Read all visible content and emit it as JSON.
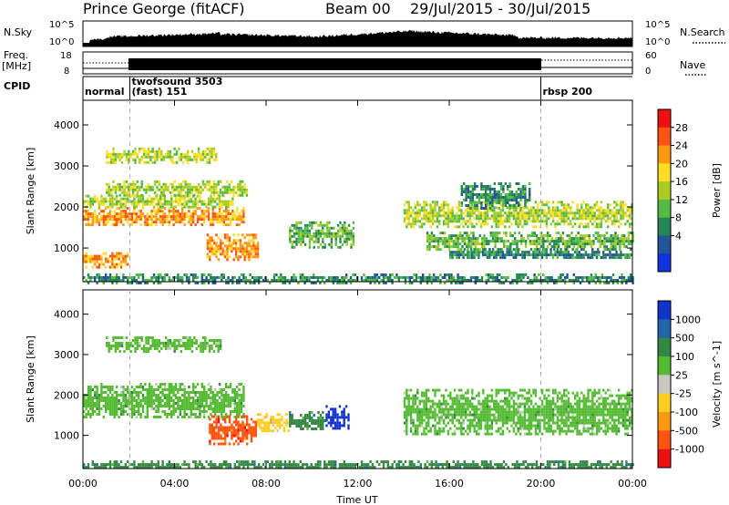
{
  "header": {
    "station": "Prince George (fitACF)",
    "beam": "Beam 00",
    "date_range": "29/Jul/2015 - 30/Jul/2015"
  },
  "strip_labels": {
    "nsky": "N.Sky",
    "nsky_hi": "10^5",
    "nsky_lo": "10^0",
    "nsearch": "N.Search",
    "nsearch_hi": "10^5",
    "nsearch_lo": "10^0",
    "freq": "Freq.",
    "freq_unit": "[MHz]",
    "freq_hi": "18",
    "freq_lo": "8",
    "nave": "Nave",
    "nave_hi": "60",
    "nave_lo": "0",
    "cpid": "CPID"
  },
  "cpid_segments": [
    {
      "label": "normal",
      "start_hour": 0.0,
      "end_hour": 2.05
    },
    {
      "label": "twofsound 3503",
      "label2": "(fast) 151",
      "start_hour": 2.05,
      "end_hour": 20.0
    },
    {
      "label": "rbsp 200",
      "start_hour": 20.0,
      "end_hour": 24.0
    }
  ],
  "power_colorbar": {
    "title": "Power [dB]",
    "ticks": [
      "28",
      "24",
      "20",
      "16",
      "12",
      "8",
      "4"
    ],
    "colors": [
      "#ee1111",
      "#ff5511",
      "#ff9911",
      "#ffdd22",
      "#aacc22",
      "#55bb44",
      "#228855",
      "#225599",
      "#1133dd"
    ]
  },
  "velocity_colorbar": {
    "title": "Velocity [m s^-1]",
    "ticks": [
      "1000",
      "500",
      "100",
      "25",
      "-25",
      "-100",
      "-500",
      "-1000"
    ],
    "colors": [
      "#1133cc",
      "#2266aa",
      "#338844",
      "#55bb33",
      "#c8c8c0",
      "#ffcc22",
      "#ff9911",
      "#ff5511",
      "#ee1111"
    ]
  },
  "chart_data": {
    "type": "heatmap",
    "xlabel": "Time UT",
    "x_ticks": [
      "00:00",
      "04:00",
      "08:00",
      "12:00",
      "16:00",
      "20:00",
      "00:00"
    ],
    "x_range_hours": [
      0,
      24
    ],
    "ylabel": "Slant Range [km]",
    "y_ticks": [
      1000,
      2000,
      3000,
      4000
    ],
    "y_range_km": [
      180,
      4600
    ],
    "panels": [
      {
        "name": "power",
        "bands": [
          {
            "t0": 0.0,
            "t1": 7.0,
            "r0": 1550,
            "r1": 2000,
            "level": 24
          },
          {
            "t0": 0.0,
            "t1": 6.5,
            "r0": 2000,
            "r1": 2300,
            "level": 16
          },
          {
            "t0": 1.0,
            "t1": 7.2,
            "r0": 2300,
            "r1": 2650,
            "level": 16
          },
          {
            "t0": 1.0,
            "t1": 5.8,
            "r0": 3100,
            "r1": 3450,
            "level": 16
          },
          {
            "t0": 5.4,
            "t1": 7.6,
            "r0": 700,
            "r1": 1350,
            "level": 24
          },
          {
            "t0": 0.0,
            "t1": 2.0,
            "r0": 550,
            "r1": 900,
            "level": 24
          },
          {
            "t0": 9.0,
            "t1": 11.8,
            "r0": 1050,
            "r1": 1650,
            "level": 12
          },
          {
            "t0": 14.0,
            "t1": 24.0,
            "r0": 1550,
            "r1": 2150,
            "level": 16
          },
          {
            "t0": 15.0,
            "t1": 24.0,
            "r0": 1000,
            "r1": 1400,
            "level": 12
          },
          {
            "t0": 16.0,
            "t1": 24.0,
            "r0": 750,
            "r1": 1000,
            "level": 8
          },
          {
            "t0": 16.5,
            "t1": 19.5,
            "r0": 2000,
            "r1": 2600,
            "level": 8
          },
          {
            "t0": 0.0,
            "t1": 24.0,
            "r0": 180,
            "r1": 380,
            "level": 8
          }
        ]
      },
      {
        "name": "velocity",
        "bands": [
          {
            "t0": 0.0,
            "t1": 7.0,
            "r0": 1450,
            "r1": 2300,
            "level": 25
          },
          {
            "t0": 1.0,
            "t1": 6.0,
            "r0": 3100,
            "r1": 3450,
            "level": 25
          },
          {
            "t0": 5.5,
            "t1": 7.6,
            "r0": 800,
            "r1": 1500,
            "level": -500
          },
          {
            "t0": 7.6,
            "t1": 9.0,
            "r0": 1100,
            "r1": 1550,
            "level": -100
          },
          {
            "t0": 9.0,
            "t1": 10.6,
            "r0": 1150,
            "r1": 1600,
            "level": 100
          },
          {
            "t0": 10.6,
            "t1": 11.6,
            "r0": 1200,
            "r1": 1750,
            "level": 1000
          },
          {
            "t0": 14.0,
            "t1": 24.0,
            "r0": 1000,
            "r1": 2150,
            "level": 25
          },
          {
            "t0": 0.0,
            "t1": 24.0,
            "r0": 180,
            "r1": 380,
            "level": 100
          }
        ]
      }
    ]
  }
}
